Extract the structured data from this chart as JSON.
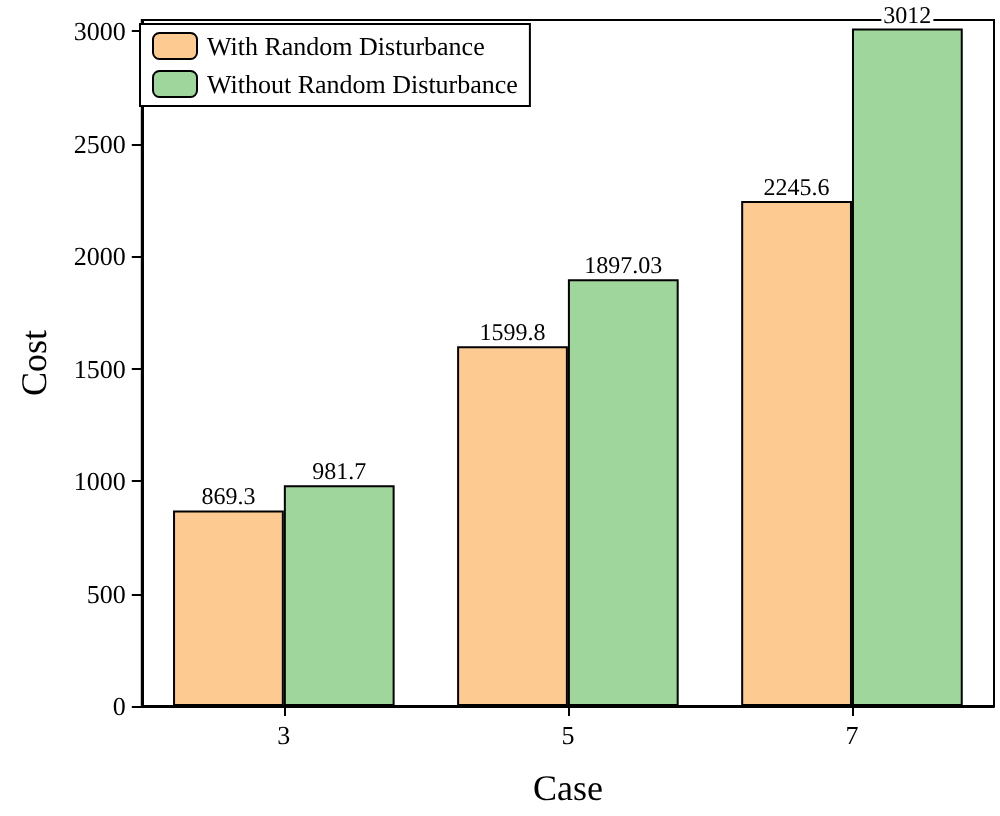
{
  "chart_data": {
    "type": "bar",
    "xlabel": "Case",
    "ylabel": "Cost",
    "categories": [
      "3",
      "5",
      "7"
    ],
    "series": [
      {
        "name": "With Random Disturbance",
        "color": "#fdcb91",
        "values": [
          869.3,
          1599.8,
          2245.6
        ]
      },
      {
        "name": "Without Random Disturbance",
        "color": "#9ed69b",
        "values": [
          981.7,
          1897.03,
          3012
        ]
      }
    ],
    "ylim": [
      0,
      3050
    ],
    "yticks": [
      0,
      500,
      1000,
      1500,
      2000,
      2500,
      3000
    ],
    "data_labels": true,
    "legend": "top left",
    "grid": false
  }
}
